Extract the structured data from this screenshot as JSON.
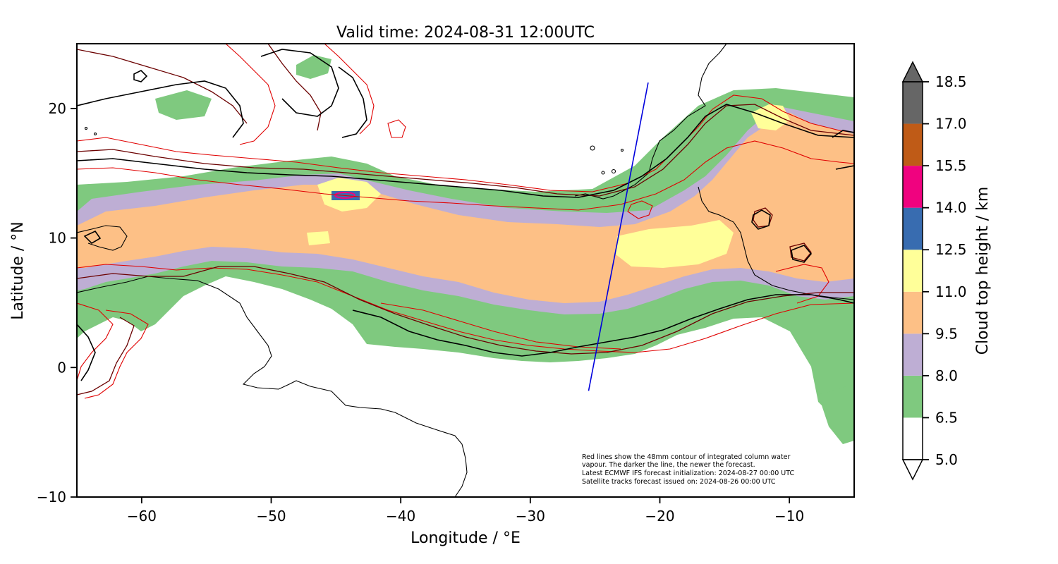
{
  "title": "Valid time: 2024-08-31 12:00UTC",
  "map": {
    "x_axis": {
      "label": "Longitude / °E",
      "range": [
        -65,
        -5
      ],
      "ticks": [
        -60,
        -50,
        -40,
        -30,
        -20,
        -10
      ],
      "tick_labels": [
        "−60",
        "−50",
        "−40",
        "−30",
        "−20",
        "−10"
      ]
    },
    "y_axis": {
      "label": "Latitude / °N",
      "range": [
        -10,
        25
      ],
      "ticks": [
        -10,
        0,
        10,
        20
      ],
      "tick_labels": [
        "−10",
        "0",
        "10",
        "20"
      ]
    },
    "satellite_track": {
      "color": "#0000dd",
      "points": [
        [
          -25.5,
          -1.8
        ],
        [
          -20.9,
          22.0
        ]
      ]
    },
    "annotation_lines": [
      "Red lines show the 48mm contour of integrated column water",
      "vapour. The darker the line, the newer the forecast.",
      "Latest ECMWF IFS forecast initialization: 2024-08-27 00:00 UTC",
      "Satellite tracks forecast issued on: 2024-08-26 00:00 UTC"
    ]
  },
  "colorbar": {
    "label": "Cloud top height / km",
    "ticks": [
      5.0,
      6.5,
      8.0,
      9.5,
      11.0,
      12.5,
      14.0,
      15.5,
      17.0,
      18.5
    ],
    "tick_labels": [
      "5.0",
      "6.5",
      "8.0",
      "9.5",
      "11.0",
      "12.5",
      "14.0",
      "15.5",
      "17.0",
      "18.5"
    ],
    "levels": [
      {
        "range": [
          5.0,
          6.5
        ],
        "color": "#ffffff"
      },
      {
        "range": [
          6.5,
          8.0
        ],
        "color": "#7fc97f"
      },
      {
        "range": [
          8.0,
          9.5
        ],
        "color": "#beaed4"
      },
      {
        "range": [
          9.5,
          11.0
        ],
        "color": "#fdc086"
      },
      {
        "range": [
          11.0,
          12.5
        ],
        "color": "#ffff99"
      },
      {
        "range": [
          12.5,
          14.0
        ],
        "color": "#386cb0"
      },
      {
        "range": [
          14.0,
          15.5
        ],
        "color": "#f0027f"
      },
      {
        "range": [
          15.5,
          17.0
        ],
        "color": "#bf5b17"
      },
      {
        "range": [
          17.0,
          18.5
        ],
        "color": "#666666"
      }
    ],
    "extend": "both"
  },
  "colors": {
    "contour_newest": "#000000",
    "contour_dark": "#6b0000",
    "contour_old": "#e00000",
    "coastline": "#000000"
  }
}
